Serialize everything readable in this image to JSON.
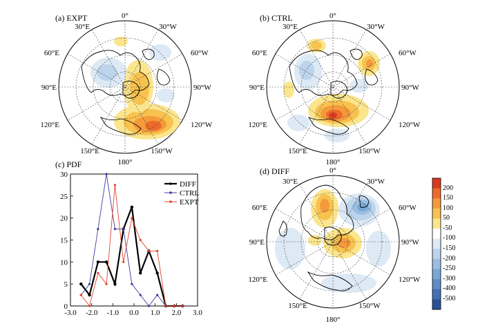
{
  "figure": {
    "panels": [
      {
        "key": "a",
        "label": "(a) EXPT",
        "lon_labels": {
          "top": "0°",
          "tl": "30°E",
          "tr": "30°W",
          "ul": "60°E",
          "ur": "60°W",
          "l": "90°E",
          "r": "90°W",
          "ll": "120°E",
          "lr": "120°W",
          "bl": "150°E",
          "br": "150°W",
          "bottom": "180°"
        }
      },
      {
        "key": "b",
        "label": "(b) CTRL",
        "lon_labels": {
          "top": "0°",
          "tl": "30°E",
          "tr": "30°W",
          "ul": "60°E",
          "ur": "60°W",
          "l": "90°E",
          "r": "90°W",
          "ll": "120°E",
          "lr": "120°W",
          "bl": "150°E",
          "br": "150°W",
          "bottom": "180°"
        }
      },
      {
        "key": "d",
        "label": "(d) DIFF",
        "lon_labels": {
          "top": "0°",
          "tl": "30°E",
          "tr": "30°W",
          "ul": "60°E",
          "ur": "60°W",
          "l": "90°E",
          "r": "90°W",
          "ll": "120°E",
          "lr": "120°W",
          "bl": "150°E",
          "br": "150°W",
          "bottom": "180°"
        }
      }
    ],
    "colorbar": {
      "ticks": [
        "200",
        "150",
        "100",
        "50",
        "-50",
        "-100",
        "-150",
        "-200",
        "-250",
        "-300",
        "-400",
        "-500"
      ],
      "colors": [
        "#d93a1e",
        "#ec6a2a",
        "#f49a3a",
        "#f8c24f",
        "#fbe58d",
        "#ffffff",
        "#dde9f5",
        "#bcd4ec",
        "#9abfe2",
        "#79a8d6",
        "#5c8dc6",
        "#4170b3",
        "#2c4f98"
      ]
    }
  },
  "chart_data": {
    "type": "line",
    "title": "(c) PDF",
    "xlabel": "",
    "ylabel": "",
    "xlim": [
      -3.0,
      3.0
    ],
    "ylim": [
      0,
      30
    ],
    "xticks": [
      "-3.0",
      "-2.0",
      "-1.0",
      "0.0",
      "1.0",
      "2.0",
      "3.0"
    ],
    "yticks": [
      "0",
      "5",
      "10",
      "15",
      "20",
      "25",
      "30"
    ],
    "series": [
      {
        "name": "DIFF",
        "color": "#000000",
        "width": 2.2,
        "x": [
          -2.5,
          -2.1,
          -1.7,
          -1.3,
          -0.9,
          -0.5,
          -0.1,
          0.3,
          0.7,
          1.1,
          1.5,
          1.9,
          2.3
        ],
        "y": [
          5,
          2.5,
          10,
          10,
          5,
          17.5,
          22.5,
          7.5,
          12.5,
          7.5,
          0,
          0,
          0
        ]
      },
      {
        "name": "CTRL",
        "color": "#3c3c9c",
        "width": 0.9,
        "x": [
          -2.5,
          -2.1,
          -1.7,
          -1.3,
          -0.9,
          -0.5,
          -0.1,
          0.3,
          0.7,
          1.1,
          1.5,
          1.9,
          2.3
        ],
        "y": [
          2.5,
          5,
          17.5,
          30,
          17.5,
          17.5,
          5,
          2.5,
          0,
          2.5,
          0,
          0,
          0
        ]
      },
      {
        "name": "EXPT",
        "color": "#e0402a",
        "width": 0.9,
        "x": [
          -2.5,
          -2.1,
          -1.7,
          -1.3,
          -0.9,
          -0.5,
          -0.1,
          0.3,
          0.7,
          1.1,
          1.5,
          1.9,
          2.3
        ],
        "y": [
          2.5,
          0,
          7.5,
          5,
          27.5,
          10,
          20,
          15,
          12.5,
          12.5,
          0,
          0,
          0
        ]
      }
    ],
    "legend_position": "top-right"
  }
}
